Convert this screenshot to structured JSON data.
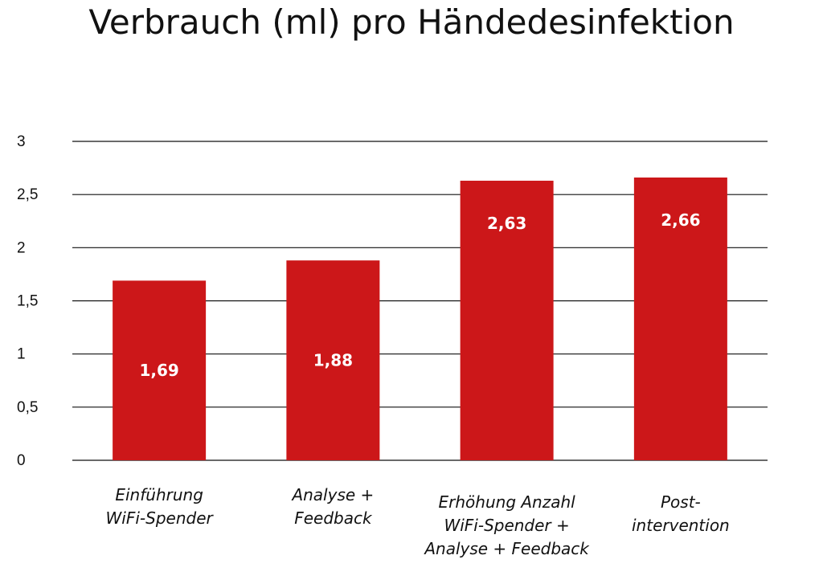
{
  "chart_data": {
    "type": "bar",
    "title": "Verbrauch (ml) pro Händedesinfektion",
    "xlabel": "",
    "ylabel": "",
    "categories": [
      [
        "Einführung",
        "WiFi-Spender"
      ],
      [
        "Analyse +",
        "Feedback"
      ],
      [
        "Erhöhung Anzahl",
        "WiFi-Spender +",
        "Analyse + Feedback"
      ],
      [
        "Post-",
        "intervention"
      ]
    ],
    "values": [
      1.69,
      1.88,
      2.63,
      2.66
    ],
    "data_labels": [
      "1,69",
      "1,88",
      "2,63",
      "2,66"
    ],
    "yticks": [
      {
        "value": 0,
        "label": "0"
      },
      {
        "value": 0.5,
        "label": "0,5"
      },
      {
        "value": 1,
        "label": "1"
      },
      {
        "value": 1.5,
        "label": "1,5"
      },
      {
        "value": 2,
        "label": "2"
      },
      {
        "value": 2.5,
        "label": "2,5"
      },
      {
        "value": 3,
        "label": "3"
      }
    ],
    "ylim": [
      0,
      3
    ],
    "grid": true,
    "legend": "none",
    "bar_color": "#cc1719"
  }
}
